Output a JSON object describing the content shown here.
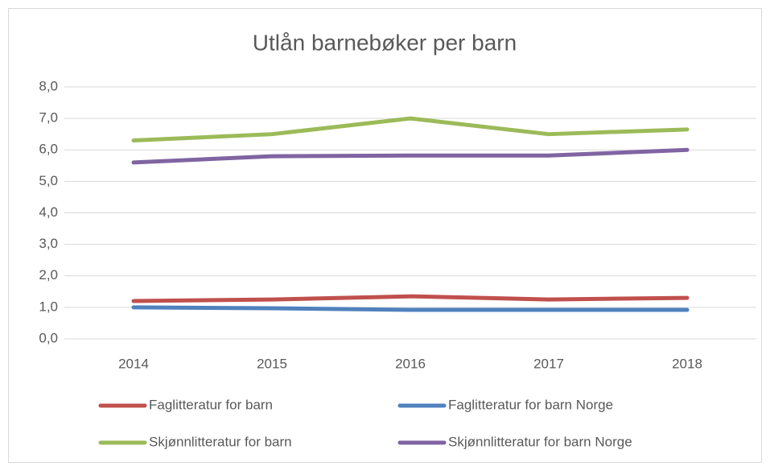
{
  "chart_data": {
    "type": "line",
    "title": "Utlån barnebøker per barn",
    "categories": [
      "2014",
      "2015",
      "2016",
      "2017",
      "2018"
    ],
    "series": [
      {
        "name": "Faglitteratur for barn",
        "color": "#c0504d",
        "values": [
          1.2,
          1.25,
          1.35,
          1.25,
          1.3
        ]
      },
      {
        "name": "Faglitteratur for barn Norge",
        "color": "#4f81bd",
        "values": [
          1.0,
          0.97,
          0.92,
          0.92,
          0.92
        ]
      },
      {
        "name": "Skjønnlitteratur for barn",
        "color": "#9bbb59",
        "values": [
          6.3,
          6.5,
          7.0,
          6.5,
          6.65
        ]
      },
      {
        "name": "Skjønnlitteratur for barn Norge",
        "color": "#8064a2",
        "values": [
          5.6,
          5.8,
          5.82,
          5.82,
          6.0
        ]
      }
    ],
    "ylim": [
      0,
      8
    ],
    "yticks": [
      {
        "value": 0,
        "label": "0,0"
      },
      {
        "value": 1,
        "label": "1,0"
      },
      {
        "value": 2,
        "label": "2,0"
      },
      {
        "value": 3,
        "label": "3,0"
      },
      {
        "value": 4,
        "label": "4,0"
      },
      {
        "value": 5,
        "label": "5,0"
      },
      {
        "value": 6,
        "label": "6,0"
      },
      {
        "value": 7,
        "label": "7,0"
      },
      {
        "value": 8,
        "label": "8,0"
      }
    ],
    "grid": true,
    "legend": "bottom"
  }
}
